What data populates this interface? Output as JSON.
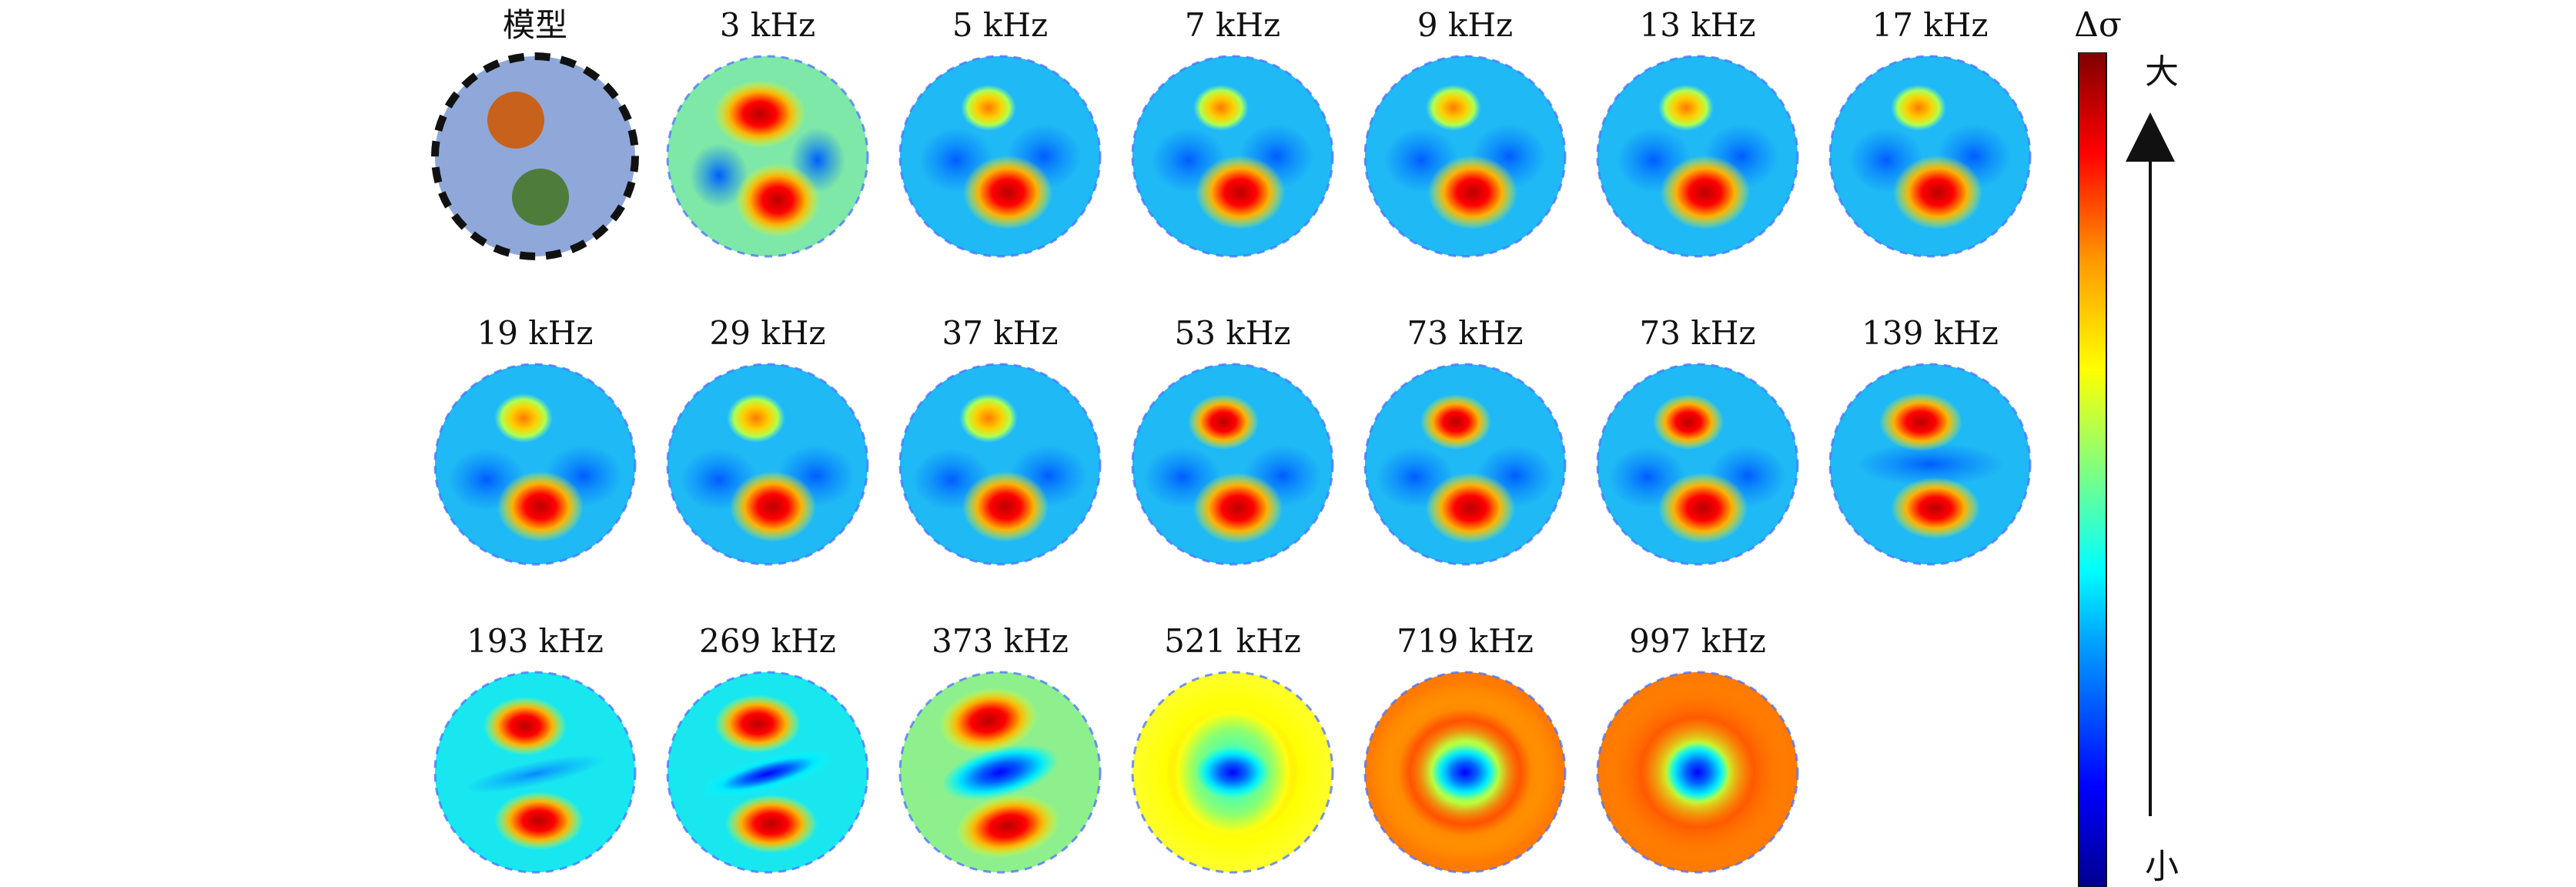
{
  "figure": {
    "model_label": "模型",
    "panel_labels": [
      "3 kHz",
      "5 kHz",
      "7 kHz",
      "9 kHz",
      "13 kHz",
      "17 kHz",
      "19 kHz",
      "29 kHz",
      "37 kHz",
      "53 kHz",
      "73 kHz",
      "73 kHz",
      "139 kHz",
      "193 kHz",
      "269 kHz",
      "373 kHz",
      "521 kHz",
      "719 kHz",
      "997 kHz"
    ]
  },
  "colorbar": {
    "title": "Δσ",
    "top_label": "大",
    "bottom_label": "小"
  },
  "colors": {
    "model_background": "#8FA8D9",
    "model_inclusion_top": "#C8611C",
    "model_inclusion_bottom": "#4E7C3B",
    "arrow": "#111111"
  }
}
